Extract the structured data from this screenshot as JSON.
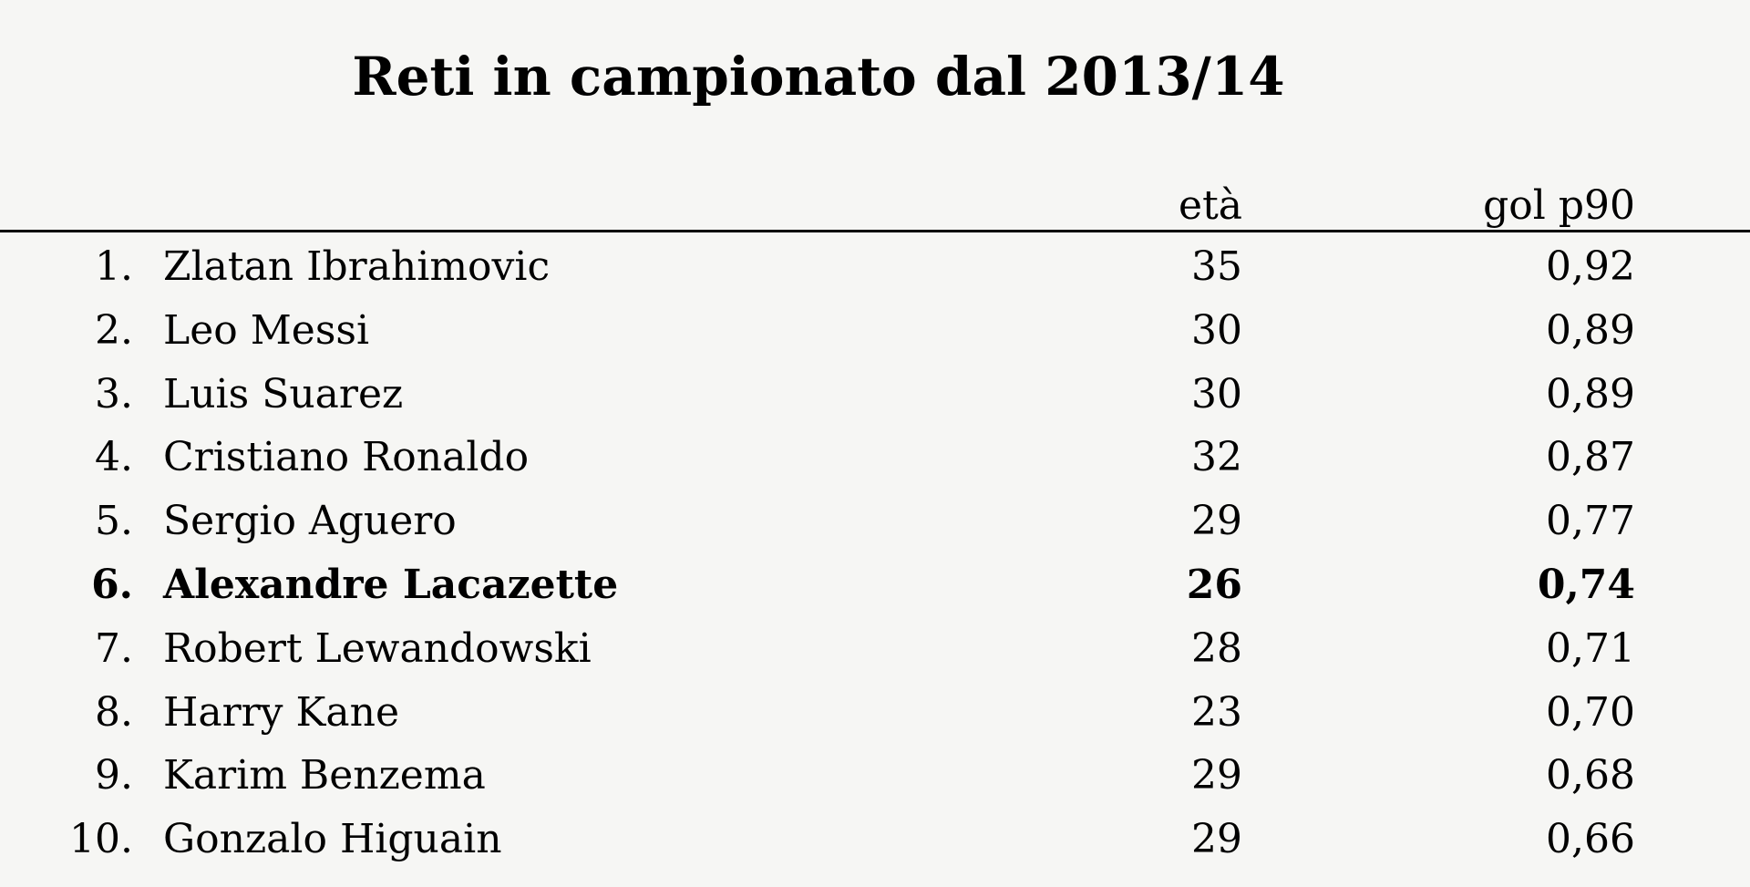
{
  "title": "Reti in campionato dal 2013/14",
  "columns": {
    "age": "età",
    "goals_p90": "gol p90"
  },
  "rows": [
    {
      "rank": "1.",
      "name": "Zlatan Ibrahimovic",
      "age": "35",
      "goals_p90": "0,92",
      "highlight": false
    },
    {
      "rank": "2.",
      "name": "Leo Messi",
      "age": "30",
      "goals_p90": "0,89",
      "highlight": false
    },
    {
      "rank": "3.",
      "name": "Luis Suarez",
      "age": "30",
      "goals_p90": "0,89",
      "highlight": false
    },
    {
      "rank": "4.",
      "name": "Cristiano Ronaldo",
      "age": "32",
      "goals_p90": "0,87",
      "highlight": false
    },
    {
      "rank": "5.",
      "name": "Sergio Aguero",
      "age": "29",
      "goals_p90": "0,77",
      "highlight": false
    },
    {
      "rank": "6.",
      "name": "Alexandre Lacazette",
      "age": "26",
      "goals_p90": "0,74",
      "highlight": true
    },
    {
      "rank": "7.",
      "name": "Robert Lewandowski",
      "age": "28",
      "goals_p90": "0,71",
      "highlight": false
    },
    {
      "rank": "8.",
      "name": "Harry Kane",
      "age": "23",
      "goals_p90": "0,70",
      "highlight": false
    },
    {
      "rank": "9.",
      "name": "Karim Benzema",
      "age": "29",
      "goals_p90": "0,68",
      "highlight": false
    },
    {
      "rank": "10.",
      "name": "Gonzalo Higuain",
      "age": "29",
      "goals_p90": "0,66",
      "highlight": false
    }
  ]
}
